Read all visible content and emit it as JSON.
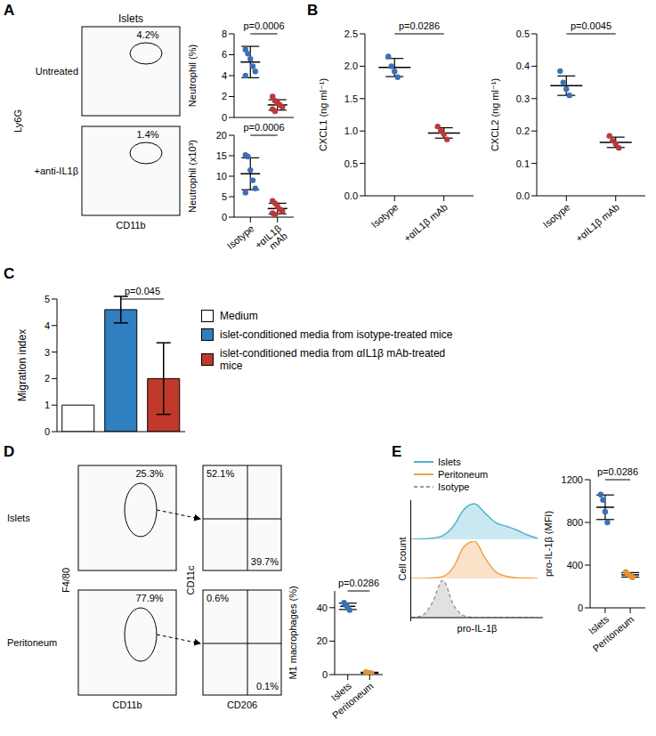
{
  "chart_data": [
    {
      "panel": "A",
      "type": "flow",
      "title": "Islets",
      "x_label": "CD11b",
      "y_label": "Ly6G",
      "rows": [
        {
          "label": "Untreated",
          "gate": {
            "value": 4.2,
            "label": "4.2%"
          }
        },
        {
          "label": "+anti-IL1β",
          "gate": {
            "value": 1.4,
            "label": "1.4%"
          }
        }
      ]
    },
    {
      "type": "dot",
      "y_label": "Neutrophil (%)",
      "categories": [
        "Isotype",
        "+αIL1β mAb"
      ],
      "tick_labels": "y",
      "p_value": "p=0.0006",
      "ylim": [
        0,
        8
      ],
      "yticks": [
        0,
        2,
        4,
        6,
        8
      ],
      "groups": [
        {
          "color": "#3c6fb5",
          "values": [
            6.5,
            6.1,
            5.6,
            4.9,
            4.4,
            4.0
          ],
          "mean": 5.3,
          "sd": 1.5
        },
        {
          "color": "#b83a3a",
          "values": [
            2.0,
            1.6,
            1.4,
            1.2,
            1.0,
            0.8,
            0.6
          ],
          "mean": 1.2,
          "sd": 0.5
        }
      ]
    },
    {
      "type": "dot",
      "y_label": "Neutrophil (x10³)",
      "categories": [
        "Isotype",
        "+αIL1β mAb"
      ],
      "p_value": "p=0.0006",
      "ylim": [
        0,
        20
      ],
      "yticks": [
        0,
        5,
        10,
        15,
        20
      ],
      "groups": [
        {
          "color": "#3c6fb5",
          "values": [
            15.2,
            14.8,
            11.5,
            9.0,
            7.0,
            6.0
          ],
          "mean": 10.6,
          "sd": 3.9
        },
        {
          "color": "#b83a3a",
          "values": [
            4.0,
            3.4,
            2.6,
            1.9,
            1.4,
            1.0,
            0.6
          ],
          "mean": 2.1,
          "sd": 1.3
        }
      ]
    },
    {
      "panel": "B",
      "type": "dot",
      "y_label": "CXCL1 (ng ml⁻¹)",
      "categories": [
        "Isotype",
        "+αIL1β mAb"
      ],
      "p_value": "p=0.0286",
      "ylim": [
        0,
        2.5
      ],
      "yticks": [
        {
          "value": 0,
          "label": "0.0"
        },
        0.5,
        {
          "value": 1,
          "label": "1.0"
        },
        1.5,
        {
          "value": 2,
          "label": "2.0"
        },
        2.5
      ],
      "groups": [
        {
          "color": "#3c6fb5",
          "values": [
            2.15,
            2.0,
            1.92,
            1.83
          ],
          "mean": 1.98,
          "sd": 0.14
        },
        {
          "color": "#b83a3a",
          "values": [
            1.07,
            1.0,
            0.95,
            0.87
          ],
          "mean": 0.97,
          "sd": 0.08
        }
      ]
    },
    {
      "type": "dot",
      "y_label": "CXCL2 (ng ml⁻¹)",
      "categories": [
        "Isotype",
        "+αIL1β mAb"
      ],
      "p_value": "p=0.0045",
      "ylim": [
        0,
        0.5
      ],
      "yticks": [
        {
          "value": 0,
          "label": "0.0"
        },
        0.1,
        0.2,
        0.3,
        0.4,
        0.5
      ],
      "groups": [
        {
          "color": "#3c6fb5",
          "values": [
            0.385,
            0.35,
            0.33,
            0.31
          ],
          "mean": 0.34,
          "sd": 0.03
        },
        {
          "color": "#b83a3a",
          "values": [
            0.185,
            0.17,
            0.16,
            0.148
          ],
          "mean": 0.165,
          "sd": 0.016
        }
      ]
    },
    {
      "panel": "C",
      "type": "bar",
      "y_label": "Migration index",
      "categories": [
        null,
        null,
        null
      ],
      "values": [
        1,
        4.6,
        2.0
      ],
      "errors": [
        null,
        0.5,
        1.35
      ],
      "colors": [
        "#ffffff",
        "#2f7fc1",
        "#c0392b"
      ],
      "names": [
        "Medium",
        "islet-conditioned media from isotype-treated mice",
        "islet-conditioned media from αIL1β mAb-treated mice"
      ],
      "p_value": "p=0.045",
      "ylim": [
        0,
        5
      ],
      "yticks": [
        0,
        1,
        2,
        3,
        4,
        5
      ]
    },
    {
      "panel": "D",
      "type": "flow_gating",
      "x_label": "CD11b",
      "y_label": "F4/80",
      "x2_label": "CD206",
      "y2_label": "CD11c",
      "rows": [
        {
          "label": "Islets",
          "gate": {
            "value": 25.3,
            "label": "25.3%"
          },
          "quadrants": [
            {
              "value": 52.1,
              "label": "52.1%"
            },
            {
              "value": 39.7,
              "label": "39.7%"
            }
          ]
        },
        {
          "label": "Peritoneum",
          "gate": {
            "value": 77.9,
            "label": "77.9%"
          },
          "quadrants": [
            {
              "value": 0.6,
              "label": "0.6%"
            },
            {
              "value": 0.1,
              "label": "0.1%"
            }
          ]
        }
      ]
    },
    {
      "type": "dot",
      "y_label": "M1 macrophages (%)",
      "categories": [
        "Islets",
        "Peritoneum"
      ],
      "p_value": "p=0.0286",
      "ylim": [
        0,
        50
      ],
      "yticks": [
        0,
        20,
        40
      ],
      "groups": [
        {
          "color": "#3c6fb5",
          "values": [
            43,
            41.5,
            40,
            38.5
          ],
          "mean": 40.8,
          "sd": 1.9
        },
        {
          "color": "#e8912d",
          "values": [
            1.5,
            1.2,
            1.0,
            0.8
          ],
          "mean": 1.1,
          "sd": 0.3
        }
      ]
    },
    {
      "panel": "E",
      "type": "histogram",
      "x_label": "pro-IL-1β",
      "y_label": "Cell count",
      "tick_labels": false,
      "legend": "top left",
      "xlim": [
        0,
        100
      ],
      "ylim": [
        0,
        100
      ],
      "x": [
        0,
        8,
        16,
        24,
        32,
        40,
        48,
        56,
        64,
        72,
        80,
        88,
        96
      ],
      "series": [
        {
          "name": "Islets",
          "color": "#4fb3cf",
          "values": [
            0,
            1,
            3,
            10,
            35,
            80,
            95,
            70,
            45,
            35,
            25,
            12,
            3
          ]
        },
        {
          "name": "Peritoneum",
          "color": "#f0a04b",
          "values": [
            0,
            0,
            1,
            5,
            30,
            85,
            100,
            55,
            18,
            6,
            2,
            1,
            0
          ]
        },
        {
          "name": "Isotype",
          "color": "#9a9a9a",
          "line_style": "dashed",
          "values": [
            0,
            5,
            40,
            100,
            35,
            5,
            0,
            0,
            0,
            0,
            0,
            0,
            0
          ]
        }
      ]
    },
    {
      "type": "dot",
      "y_label": "pro-IL-1β (MFI)",
      "categories": [
        "Islets",
        "Peritoneum"
      ],
      "p_value": "p=0.0286",
      "ylim": [
        0,
        1200
      ],
      "yticks": [
        0,
        400,
        800,
        1200
      ],
      "groups": [
        {
          "color": "#3c6fb5",
          "values": [
            1060,
            1010,
            900,
            800
          ],
          "mean": 942,
          "sd": 115
        },
        {
          "color": "#e8912d",
          "values": [
            335,
            315,
            300,
            285
          ],
          "mean": 309,
          "sd": 21
        }
      ]
    }
  ]
}
